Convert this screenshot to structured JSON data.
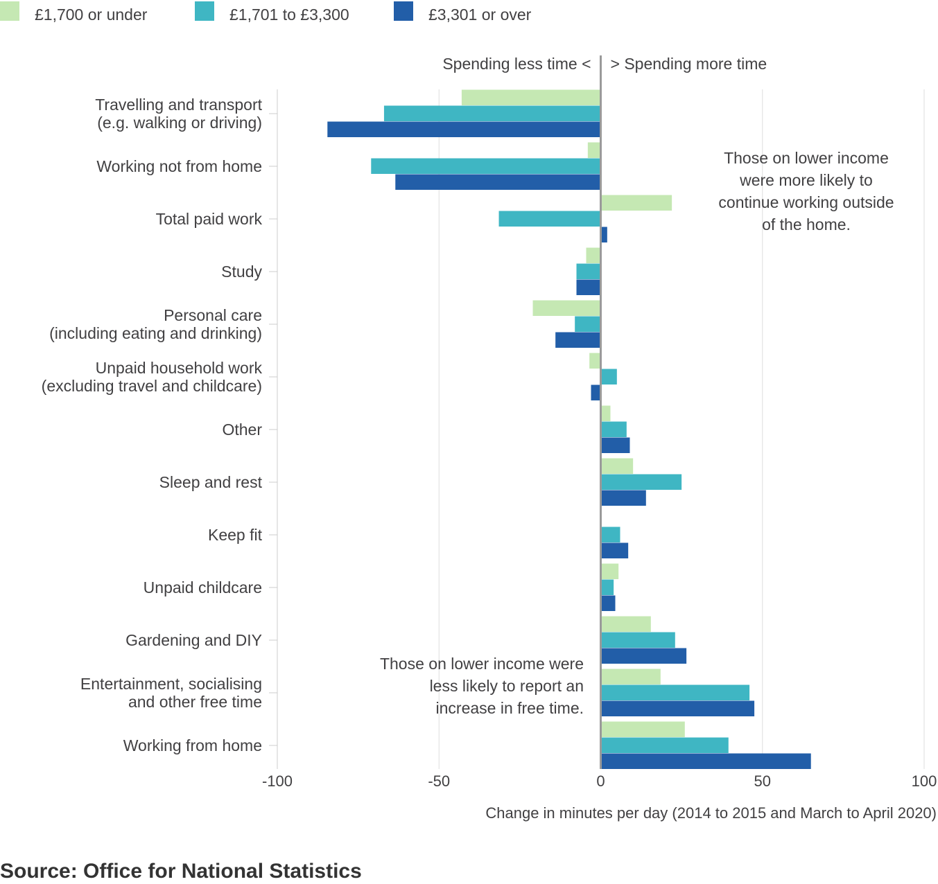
{
  "chart_data": {
    "type": "bar",
    "orientation": "horizontal",
    "title": "",
    "xlabel": "Change in minutes per day (2014 to 2015 and March to April 2020)",
    "ylabel": "",
    "xlim": [
      -100,
      100
    ],
    "xticks": [
      -100,
      -50,
      0,
      50,
      100
    ],
    "xtick_labels": [
      "-100",
      "-50",
      "0",
      "50",
      "100"
    ],
    "grid": true,
    "legend_position": "top-left",
    "direction_labels": {
      "negative": "Spending less time <",
      "positive": "> Spending more time"
    },
    "categories": [
      [
        "Travelling and transport",
        "(e.g. walking or driving)"
      ],
      [
        "Working not from home"
      ],
      [
        "Total paid work"
      ],
      [
        "Study"
      ],
      [
        "Personal care",
        "(including eating and drinking)"
      ],
      [
        "Unpaid household work",
        "(excluding travel and childcare)"
      ],
      [
        "Other"
      ],
      [
        "Sleep and rest"
      ],
      [
        "Keep fit"
      ],
      [
        "Unpaid childcare"
      ],
      [
        "Gardening and DIY"
      ],
      [
        "Entertainment, socialising",
        "and other free time"
      ],
      [
        "Working from home"
      ]
    ],
    "series": [
      {
        "name": "£1,700 or under",
        "color": "#c5e8b3",
        "values": [
          -43,
          -4,
          22,
          -4.5,
          -21,
          -3.5,
          3,
          10,
          0,
          5.5,
          15.5,
          18.5,
          26
        ]
      },
      {
        "name": "£1,701 to £3,300",
        "color": "#3fb6c3",
        "values": [
          -67,
          -71,
          -31.5,
          -7.5,
          -8,
          5,
          8,
          25,
          6,
          4,
          23,
          46,
          39.5
        ]
      },
      {
        "name": "£3,301 or over",
        "color": "#225ea8",
        "values": [
          -84.5,
          -63.5,
          2,
          -7.5,
          -14,
          -3,
          9,
          14,
          8.5,
          4.5,
          26.5,
          47.5,
          65
        ]
      }
    ],
    "annotations": [
      {
        "lines": [
          "Those on lower income",
          "were more likely to",
          "continue working outside",
          "of the home."
        ]
      },
      {
        "lines": [
          "Those on lower income were",
          "less likely to report an",
          "increase in free time."
        ]
      }
    ]
  },
  "source": "Source: Office for National Statistics"
}
